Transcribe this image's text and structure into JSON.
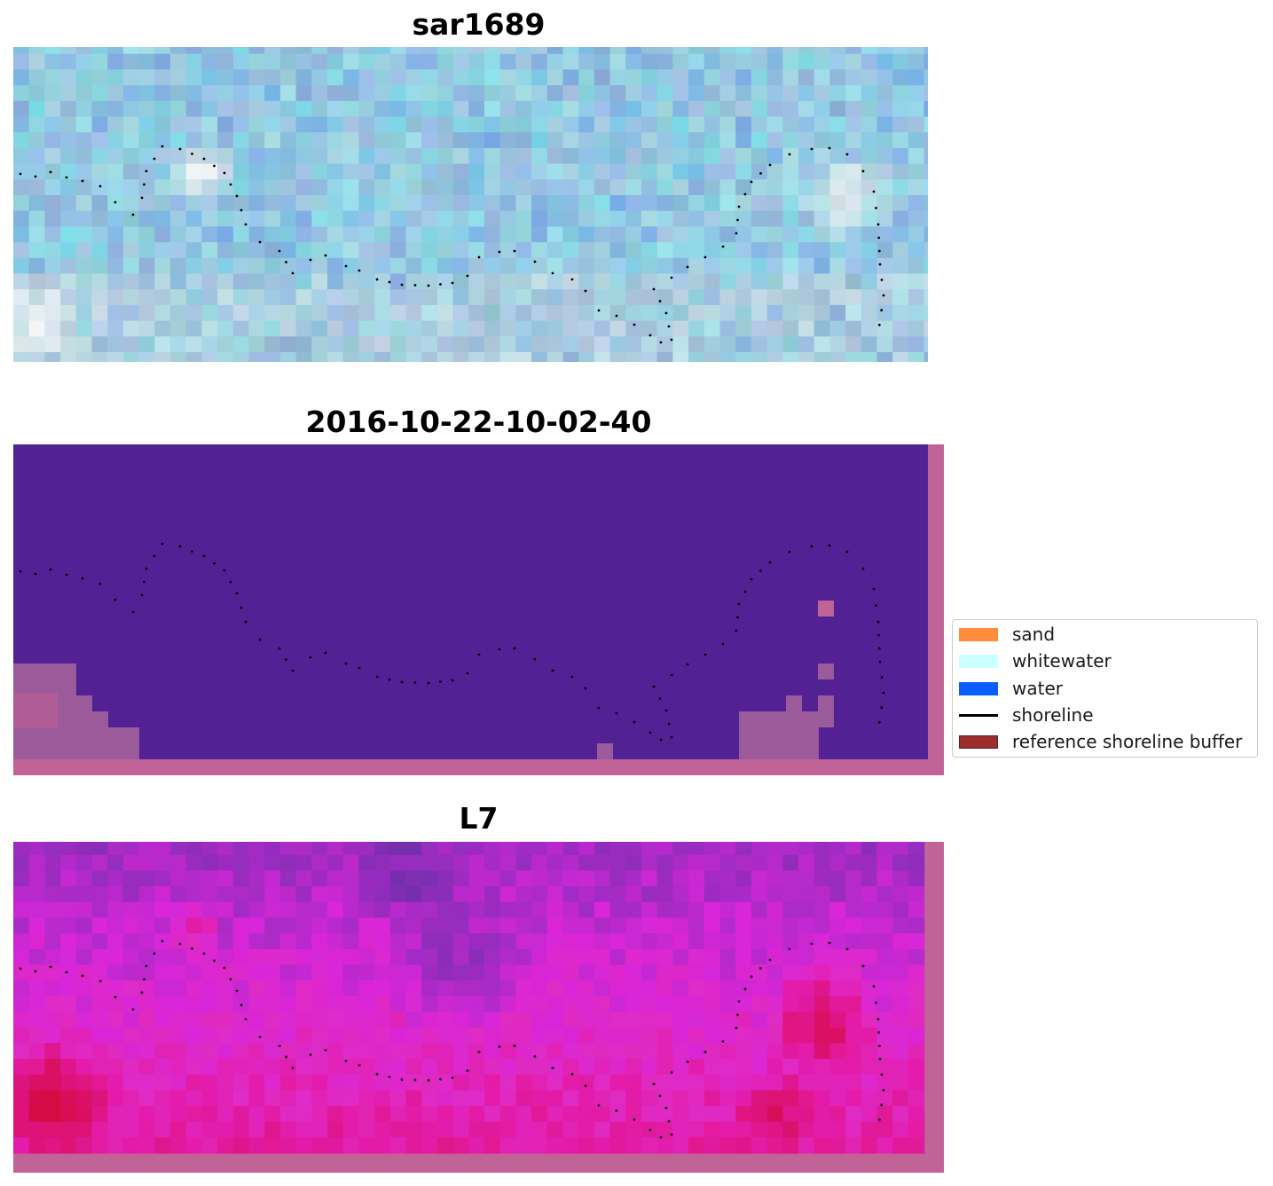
{
  "panels": [
    {
      "title": "sar1689",
      "style": "rgb"
    },
    {
      "title": "2016-10-22-10-02-40",
      "style": "classified"
    },
    {
      "title": "L7",
      "style": "index"
    }
  ],
  "legend": {
    "items": [
      {
        "label": "sand",
        "color": "#ff8c3b",
        "kind": "patch"
      },
      {
        "label": "whitewater",
        "color": "#ccffff",
        "kind": "patch"
      },
      {
        "label": "water",
        "color": "#0a5eff",
        "kind": "patch"
      },
      {
        "label": "shoreline",
        "color": "#000000",
        "kind": "line"
      },
      {
        "label": "reference shoreline buffer",
        "color": "#9b2d2d",
        "kind": "patch"
      }
    ]
  },
  "colors": {
    "classified_background": "#522294",
    "buffer_overlay": "#c06396"
  }
}
